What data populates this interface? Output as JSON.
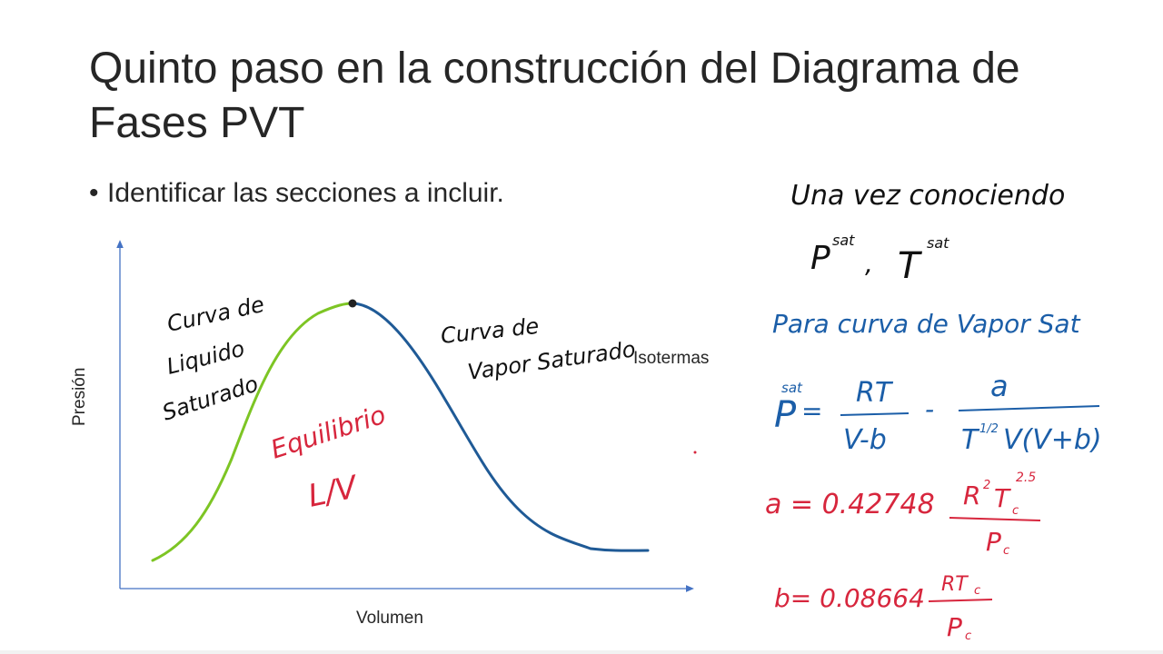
{
  "slide": {
    "title": "Quinto paso en la construcción del Diagrama de Fases PVT",
    "bullets": [
      "Identificar las secciones a incluir."
    ]
  },
  "diagram": {
    "y_axis_label": "Presión",
    "x_axis_label": "Volumen",
    "isotherm_label": "Isotermas",
    "liquid_curve_label": [
      "Curva de",
      "Liquido",
      "Saturado"
    ],
    "vapor_curve_label": [
      "Curva de",
      "Vapor Saturado"
    ],
    "region_label": [
      "Equilibrio",
      "L/V"
    ]
  },
  "annotations": {
    "intro": [
      "Una vez conociendo",
      "P",
      "sat",
      ",",
      "T",
      "sat"
    ],
    "vapor_heading": "Para curva de Vapor Sat",
    "psat_equation": {
      "lhs": "P",
      "lhs_sup": "sat",
      "eq": "=",
      "num1": "RT",
      "den1": "V-b",
      "minus": "-",
      "num2": "a",
      "den2": "T",
      "den2_sup": "1/2",
      "den2_rest": "V(V+b)"
    },
    "a_equation": {
      "lhs": "a = 0.42748",
      "num": "R",
      "num_sup1": "2",
      "num_mid": "T",
      "num_sub": "c",
      "num_sup2": "2.5",
      "den": "P",
      "den_sub": "c"
    },
    "b_equation": {
      "lhs": "b= 0.08664",
      "num": "RT",
      "num_sub": "c",
      "den": "P",
      "den_sub": "c"
    }
  },
  "colors": {
    "text": "#262626",
    "axis": "#4472c4",
    "liquid_curve": "#7dc524",
    "vapor_curve": "#1f5a96",
    "handwriting_black": "#111111",
    "handwriting_blue": "#1b5ea8",
    "handwriting_red": "#d7263d"
  }
}
